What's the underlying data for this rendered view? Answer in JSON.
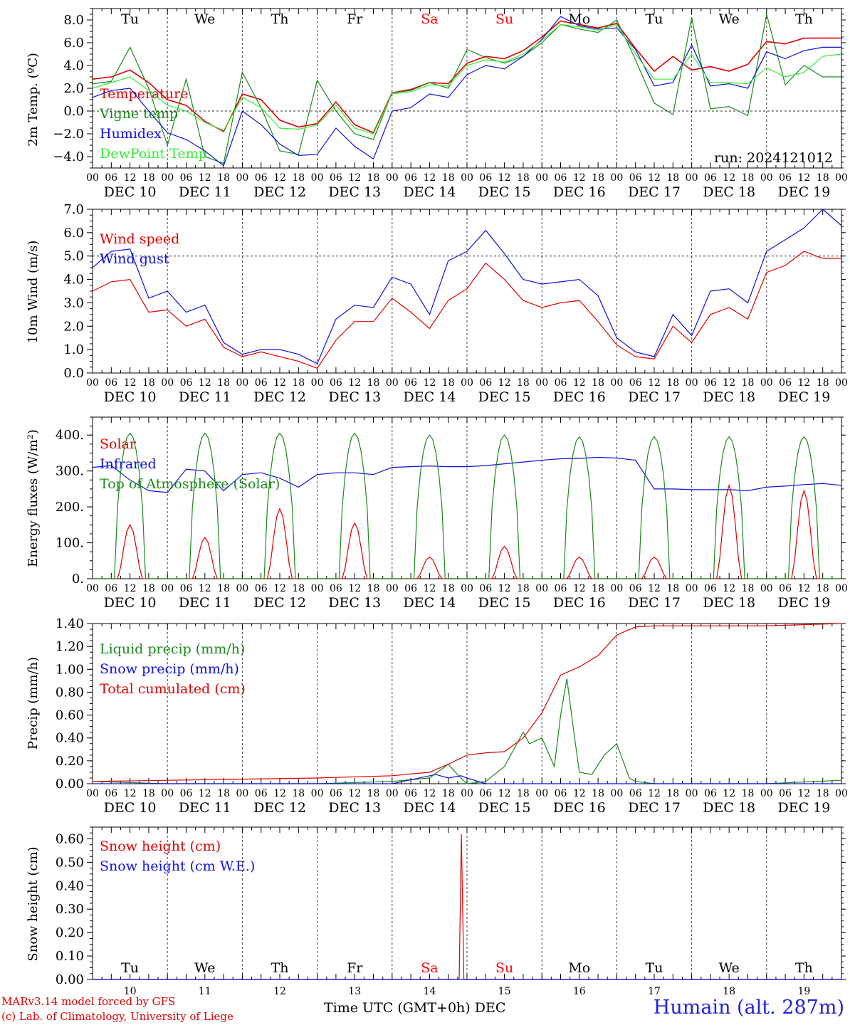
{
  "colors": {
    "red": "#e00000",
    "darkgreen": "#1a8a1a",
    "blue": "#1010e0",
    "lightgreen": "#33ee33",
    "weekend": "#ff0000"
  },
  "hour_ticks": [
    "00",
    "06",
    "12",
    "18"
  ],
  "day_labels": [
    "DEC 10",
    "DEC 11",
    "DEC 12",
    "DEC 13",
    "DEC 14",
    "DEC 15",
    "DEC 16",
    "DEC 17",
    "DEC 18",
    "DEC 19"
  ],
  "weekdays": [
    "Tu",
    "We",
    "Th",
    "Fr",
    "Sa",
    "Su",
    "Mo",
    "Tu",
    "We",
    "Th"
  ],
  "weekend_flags": [
    false,
    false,
    false,
    false,
    true,
    true,
    false,
    false,
    false,
    false
  ],
  "bottom_day_numbers": [
    "10",
    "11",
    "12",
    "13",
    "14",
    "15",
    "16",
    "17",
    "18",
    "19"
  ],
  "footer": {
    "model": "MARv3.14 model forced by GFS",
    "copyright": "(c) Lab. of Climatology, University of Liege",
    "xtitle": "Time UTC (GMT+0h) DEC",
    "station": "Humain (alt. 287m)"
  },
  "chart_data": [
    {
      "type": "line",
      "ylabel": "2m Temp. (ºC)",
      "run_label": "run: 2024121012",
      "x_unit": "hours since DEC 10 00 UTC",
      "ylim": [
        -5,
        9
      ],
      "yticks": [
        -4,
        -2,
        0,
        2,
        4,
        6,
        8
      ],
      "ytick_labels": [
        "−4.0",
        "−2.0",
        "0.0",
        "2.0",
        "4.0",
        "6.0",
        "8.0"
      ],
      "reference_line": 0,
      "series": [
        {
          "name": "Temperature",
          "color": "#e00000",
          "x": [
            0,
            6,
            12,
            18,
            24,
            30,
            36,
            42,
            48,
            54,
            60,
            66,
            72,
            78,
            84,
            90,
            96,
            102,
            108,
            114,
            120,
            126,
            132,
            138,
            144,
            150,
            156,
            162,
            168,
            174,
            180,
            186,
            192,
            198,
            204,
            210,
            216,
            222,
            228,
            234,
            240
          ],
          "y": [
            2.8,
            3.0,
            3.6,
            2.5,
            1.0,
            0.5,
            -0.9,
            -1.8,
            1.5,
            1.0,
            -0.8,
            -1.4,
            -1.1,
            0.8,
            -1.2,
            -1.9,
            1.6,
            1.9,
            2.5,
            2.4,
            4.2,
            4.8,
            4.6,
            5.3,
            6.5,
            7.9,
            7.6,
            7.3,
            7.7,
            5.5,
            3.5,
            4.8,
            3.6,
            3.9,
            3.5,
            4.1,
            6.1,
            5.9,
            6.4,
            6.4,
            6.4
          ]
        },
        {
          "name": "Vigne temp",
          "color": "#1a8a1a",
          "x": [
            0,
            6,
            12,
            18,
            24,
            30,
            36,
            42,
            48,
            54,
            60,
            66,
            72,
            78,
            84,
            90,
            96,
            102,
            108,
            114,
            120,
            126,
            132,
            138,
            144,
            150,
            156,
            162,
            168,
            174,
            180,
            186,
            192,
            198,
            204,
            210,
            216,
            222,
            228,
            234,
            240
          ],
          "y": [
            2.4,
            2.6,
            5.6,
            2.0,
            -3.0,
            2.8,
            -4.0,
            -4.6,
            3.4,
            0.3,
            -3.5,
            -3.8,
            2.7,
            0.0,
            -2.0,
            -2.5,
            1.6,
            1.8,
            2.5,
            2.0,
            5.4,
            4.7,
            4.2,
            4.8,
            6.0,
            7.6,
            7.2,
            6.9,
            8.0,
            4.5,
            0.7,
            -0.3,
            8.2,
            0.2,
            0.4,
            -0.4,
            8.5,
            2.3,
            4.0,
            3.0,
            3.0
          ]
        },
        {
          "name": "Humidex",
          "color": "#1010e0",
          "x": [
            0,
            6,
            12,
            18,
            24,
            30,
            36,
            42,
            48,
            54,
            60,
            66,
            72,
            78,
            84,
            90,
            96,
            102,
            108,
            114,
            120,
            126,
            132,
            138,
            144,
            150,
            156,
            162,
            168,
            174,
            180,
            186,
            192,
            198,
            204,
            210,
            216,
            222,
            228,
            234,
            240
          ],
          "y": [
            1.2,
            1.8,
            2.0,
            0.0,
            -1.9,
            -2.5,
            -3.5,
            -4.8,
            0.0,
            -1.2,
            -2.9,
            -3.9,
            -3.8,
            -1.5,
            -3.1,
            -4.2,
            0.0,
            0.3,
            1.5,
            1.2,
            3.2,
            4.0,
            3.7,
            4.8,
            6.3,
            8.3,
            7.5,
            7.2,
            7.3,
            5.4,
            2.2,
            2.5,
            5.8,
            2.2,
            2.4,
            2.0,
            5.2,
            4.6,
            5.3,
            5.6,
            5.6
          ]
        },
        {
          "name": "DewPoint Temp",
          "color": "#33ee33",
          "x": [
            0,
            6,
            12,
            18,
            24,
            30,
            36,
            42,
            48,
            54,
            60,
            66,
            72,
            78,
            84,
            90,
            96,
            102,
            108,
            114,
            120,
            126,
            132,
            138,
            144,
            150,
            156,
            162,
            168,
            174,
            180,
            186,
            192,
            198,
            204,
            210,
            216,
            222,
            228,
            234,
            240
          ],
          "y": [
            2.0,
            2.5,
            3.0,
            1.8,
            0.5,
            0.0,
            -1.0,
            -1.7,
            1.2,
            0.3,
            -1.5,
            -1.6,
            -1.2,
            0.5,
            -1.5,
            -2.0,
            1.5,
            1.7,
            2.3,
            2.2,
            4.0,
            4.5,
            4.3,
            5.0,
            6.2,
            7.6,
            7.4,
            7.1,
            7.6,
            5.0,
            2.8,
            2.8,
            5.0,
            2.5,
            2.5,
            2.4,
            3.8,
            3.0,
            3.4,
            4.8,
            5.0
          ]
        }
      ]
    },
    {
      "type": "line",
      "ylabel": "10m Wind (m/s)",
      "x_unit": "hours since DEC 10 00 UTC",
      "ylim": [
        0,
        7
      ],
      "yticks": [
        0,
        1,
        2,
        3,
        4,
        5,
        6,
        7
      ],
      "ytick_labels": [
        "0.0",
        "1.0",
        "2.0",
        "3.0",
        "4.0",
        "5.0",
        "6.0",
        "7.0"
      ],
      "reference_line": 5,
      "series": [
        {
          "name": "Wind speed",
          "color": "#e00000",
          "x": [
            0,
            6,
            12,
            18,
            24,
            30,
            36,
            42,
            48,
            54,
            60,
            66,
            72,
            78,
            84,
            90,
            96,
            102,
            108,
            114,
            120,
            126,
            132,
            138,
            144,
            150,
            156,
            162,
            168,
            174,
            180,
            186,
            192,
            198,
            204,
            210,
            216,
            222,
            228,
            234,
            240
          ],
          "y": [
            3.5,
            3.9,
            4.0,
            2.6,
            2.7,
            2.0,
            2.3,
            1.1,
            0.7,
            0.9,
            0.7,
            0.5,
            0.2,
            1.4,
            2.2,
            2.2,
            3.2,
            2.6,
            1.9,
            3.1,
            3.6,
            4.7,
            4.0,
            3.1,
            2.8,
            3.0,
            3.1,
            2.2,
            1.2,
            0.7,
            0.6,
            2.0,
            1.3,
            2.5,
            2.8,
            2.3,
            4.3,
            4.6,
            5.2,
            4.9,
            4.9
          ]
        },
        {
          "name": "Wind gust",
          "color": "#1010e0",
          "x": [
            0,
            6,
            12,
            18,
            24,
            30,
            36,
            42,
            48,
            54,
            60,
            66,
            72,
            78,
            84,
            90,
            96,
            102,
            108,
            114,
            120,
            126,
            132,
            138,
            144,
            150,
            156,
            162,
            168,
            174,
            180,
            186,
            192,
            198,
            204,
            210,
            216,
            222,
            228,
            234,
            240
          ],
          "y": [
            4.5,
            5.2,
            5.3,
            3.2,
            3.5,
            2.6,
            2.9,
            1.3,
            0.8,
            1.0,
            1.0,
            0.8,
            0.4,
            2.3,
            2.9,
            2.8,
            4.1,
            3.8,
            2.5,
            4.8,
            5.2,
            6.1,
            5.1,
            4.0,
            3.8,
            3.9,
            4.0,
            3.3,
            1.5,
            0.9,
            0.7,
            2.5,
            1.6,
            3.5,
            3.6,
            3.0,
            5.2,
            5.7,
            6.2,
            7.0,
            6.3
          ]
        }
      ]
    },
    {
      "type": "line",
      "ylabel": "Energy fluxes (W/m²)",
      "x_unit": "hours since DEC 10 00 UTC",
      "ylim": [
        0,
        450
      ],
      "yticks": [
        0,
        100,
        200,
        300,
        400
      ],
      "ytick_labels": [
        "0.",
        "100.",
        "200.",
        "300.",
        "400."
      ],
      "series": [
        {
          "name": "Solar",
          "color": "#e00000",
          "peaks": [
            150,
            115,
            195,
            155,
            60,
            90,
            60,
            60,
            260,
            245
          ]
        },
        {
          "name": "Infrared",
          "color": "#1010e0",
          "x": [
            0,
            6,
            12,
            18,
            24,
            30,
            36,
            42,
            48,
            54,
            60,
            66,
            72,
            78,
            84,
            90,
            96,
            102,
            108,
            114,
            120,
            126,
            132,
            138,
            144,
            150,
            156,
            162,
            168,
            174,
            180,
            186,
            192,
            198,
            204,
            210,
            216,
            222,
            228,
            234,
            240
          ],
          "y": [
            310,
            315,
            275,
            245,
            240,
            305,
            300,
            245,
            290,
            295,
            280,
            255,
            290,
            295,
            295,
            290,
            310,
            312,
            314,
            312,
            312,
            315,
            320,
            325,
            330,
            334,
            335,
            338,
            336,
            330,
            250,
            250,
            248,
            248,
            248,
            245,
            255,
            258,
            262,
            265,
            260
          ]
        },
        {
          "name": "Top of Atmosphere (Solar)",
          "color": "#1a8a1a",
          "peaks": [
            405,
            405,
            405,
            405,
            400,
            400,
            395,
            395,
            395,
            395
          ]
        }
      ]
    },
    {
      "type": "line",
      "ylabel": "Precip (mm/h)",
      "x_unit": "hours since DEC 10 00 UTC",
      "ylim": [
        0,
        1.4
      ],
      "yticks": [
        0,
        0.2,
        0.4,
        0.6,
        0.8,
        1.0,
        1.2,
        1.4
      ],
      "ytick_labels": [
        "0.00",
        "0.20",
        "0.40",
        "0.60",
        "0.80",
        "1.00",
        "1.20",
        "1.40"
      ],
      "series": [
        {
          "name": "Liquid precip (mm/h)",
          "color": "#1a8a1a",
          "x": [
            0,
            24,
            48,
            72,
            96,
            108,
            114,
            118,
            120,
            126,
            132,
            136,
            138,
            140,
            144,
            148,
            150,
            152,
            154,
            156,
            160,
            164,
            168,
            170,
            172,
            174,
            180,
            192,
            216,
            240
          ],
          "y": [
            0.02,
            0.0,
            0.0,
            0.0,
            0.02,
            0.05,
            0.17,
            0.05,
            0.0,
            0.02,
            0.15,
            0.35,
            0.45,
            0.35,
            0.4,
            0.15,
            0.6,
            0.92,
            0.5,
            0.1,
            0.08,
            0.25,
            0.35,
            0.2,
            0.05,
            0.02,
            0.0,
            0.0,
            0.0,
            0.03
          ]
        },
        {
          "name": "Snow precip (mm/h)",
          "color": "#1010e0",
          "x": [
            0,
            96,
            110,
            114,
            118,
            120,
            126,
            132,
            240
          ],
          "y": [
            0.0,
            0.0,
            0.08,
            0.05,
            0.07,
            0.05,
            0.0,
            0.0,
            0.0
          ]
        },
        {
          "name": "Total cumulated (cm)",
          "color": "#e00000",
          "x": [
            0,
            24,
            48,
            72,
            96,
            108,
            114,
            120,
            126,
            132,
            138,
            144,
            150,
            156,
            162,
            168,
            174,
            180,
            192,
            216,
            240
          ],
          "y": [
            0.02,
            0.03,
            0.04,
            0.05,
            0.07,
            0.1,
            0.17,
            0.25,
            0.27,
            0.28,
            0.4,
            0.62,
            0.95,
            1.02,
            1.12,
            1.3,
            1.37,
            1.38,
            1.38,
            1.38,
            1.4
          ]
        }
      ]
    },
    {
      "type": "line",
      "ylabel": "Snow height (cm)",
      "x_unit": "hours since DEC 10 00 UTC",
      "ylim": [
        0,
        0.65
      ],
      "yticks": [
        0,
        0.1,
        0.2,
        0.3,
        0.4,
        0.5,
        0.6
      ],
      "ytick_labels": [
        "0.00",
        "0.10",
        "0.20",
        "0.30",
        "0.40",
        "0.50",
        "0.60"
      ],
      "series": [
        {
          "name": "Snow height (cm)",
          "color": "#e00000",
          "x": [
            0,
            117.5,
            118.2,
            119.0,
            240
          ],
          "y": [
            0,
            0,
            0.62,
            0,
            0
          ]
        },
        {
          "name": "Snow height (cm W.E.)",
          "color": "#1010e0",
          "x": [
            0,
            240
          ],
          "y": [
            0,
            0
          ]
        }
      ]
    }
  ]
}
